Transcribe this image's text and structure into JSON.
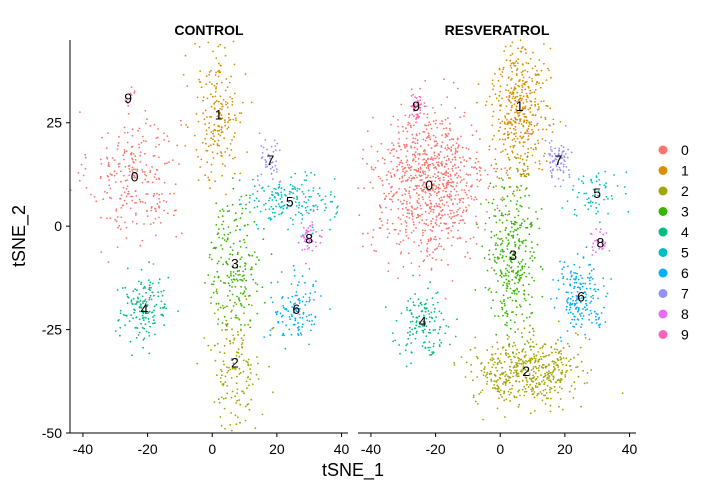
{
  "chart_data": {
    "type": "scatter",
    "xlabel": "tSNE_1",
    "ylabel": "tSNE_2",
    "xlim": [
      -44,
      42
    ],
    "ylim": [
      -50,
      45
    ],
    "xticks": [
      -40,
      -20,
      0,
      20,
      40
    ],
    "yticks": [
      -50,
      -25,
      0,
      25
    ],
    "xtick_labels": [
      "-40",
      "-20",
      "0",
      "20",
      "40"
    ],
    "ytick_labels": [
      "-50",
      "-25",
      "0",
      "25"
    ],
    "legend": {
      "position": "right",
      "entries": [
        {
          "label": "0",
          "color": "#F8766D"
        },
        {
          "label": "1",
          "color": "#D89000"
        },
        {
          "label": "2",
          "color": "#A3A500"
        },
        {
          "label": "3",
          "color": "#39B600"
        },
        {
          "label": "4",
          "color": "#00BF7D"
        },
        {
          "label": "5",
          "color": "#00BFC4"
        },
        {
          "label": "6",
          "color": "#00B0F6"
        },
        {
          "label": "7",
          "color": "#9590FF"
        },
        {
          "label": "8",
          "color": "#E76BF3"
        },
        {
          "label": "9",
          "color": "#FF62BC"
        }
      ]
    },
    "panels": [
      {
        "title": "CONTROL",
        "clusters": [
          {
            "label": "0",
            "x": -24,
            "y": 12
          },
          {
            "label": "1",
            "x": 2,
            "y": 27
          },
          {
            "label": "2",
            "x": 7,
            "y": -33
          },
          {
            "label": "3",
            "x": 7,
            "y": -9
          },
          {
            "label": "4",
            "x": -21,
            "y": -20
          },
          {
            "label": "5",
            "x": 24,
            "y": 6
          },
          {
            "label": "6",
            "x": 26,
            "y": -20
          },
          {
            "label": "7",
            "x": 18,
            "y": 16
          },
          {
            "label": "8",
            "x": 30,
            "y": -3
          },
          {
            "label": "9",
            "x": -26,
            "y": 31
          }
        ]
      },
      {
        "title": "RESVERATROL",
        "clusters": [
          {
            "label": "0",
            "x": -22,
            "y": 10
          },
          {
            "label": "1",
            "x": 6,
            "y": 29
          },
          {
            "label": "2",
            "x": 8,
            "y": -35
          },
          {
            "label": "3",
            "x": 4,
            "y": -7
          },
          {
            "label": "4",
            "x": -24,
            "y": -23
          },
          {
            "label": "5",
            "x": 30,
            "y": 8
          },
          {
            "label": "6",
            "x": 25,
            "y": -17
          },
          {
            "label": "7",
            "x": 18,
            "y": 16
          },
          {
            "label": "8",
            "x": 31,
            "y": -4
          },
          {
            "label": "9",
            "x": -26,
            "y": 29
          }
        ]
      }
    ]
  }
}
